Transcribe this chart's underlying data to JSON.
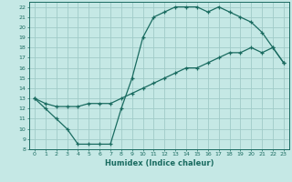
{
  "title": "",
  "xlabel": "Humidex (Indice chaleur)",
  "bg_color": "#c5e8e5",
  "grid_color": "#a0cbc8",
  "line_color": "#1a6b60",
  "xlim": [
    -0.5,
    23.5
  ],
  "ylim": [
    8,
    22.5
  ],
  "yticks": [
    8,
    9,
    10,
    11,
    12,
    13,
    14,
    15,
    16,
    17,
    18,
    19,
    20,
    21,
    22
  ],
  "xticks": [
    0,
    1,
    2,
    3,
    4,
    5,
    6,
    7,
    8,
    9,
    10,
    11,
    12,
    13,
    14,
    15,
    16,
    17,
    18,
    19,
    20,
    21,
    22,
    23
  ],
  "curve1_x": [
    0,
    1,
    2,
    3,
    4,
    5,
    6,
    7,
    8,
    9,
    10,
    11,
    12,
    13,
    14,
    15,
    16,
    17,
    18,
    19,
    20,
    21,
    22,
    23
  ],
  "curve1_y": [
    13,
    12,
    11,
    10,
    8.5,
    8.5,
    8.5,
    8.5,
    12,
    15,
    19,
    21,
    21.5,
    22,
    22,
    22,
    21.5,
    22,
    21.5,
    21,
    20.5,
    19.5,
    18,
    16.5
  ],
  "curve2_x": [
    0,
    1,
    2,
    3,
    4,
    5,
    6,
    7,
    8,
    9,
    10,
    11,
    12,
    13,
    14,
    15,
    16,
    17,
    18,
    19,
    20,
    21,
    22,
    23
  ],
  "curve2_y": [
    13,
    12.5,
    12.2,
    12.2,
    12.2,
    12.5,
    12.5,
    12.5,
    13,
    13.5,
    14,
    14.5,
    15,
    15.5,
    16,
    16,
    16.5,
    17,
    17.5,
    17.5,
    18,
    17.5,
    18,
    16.5
  ]
}
